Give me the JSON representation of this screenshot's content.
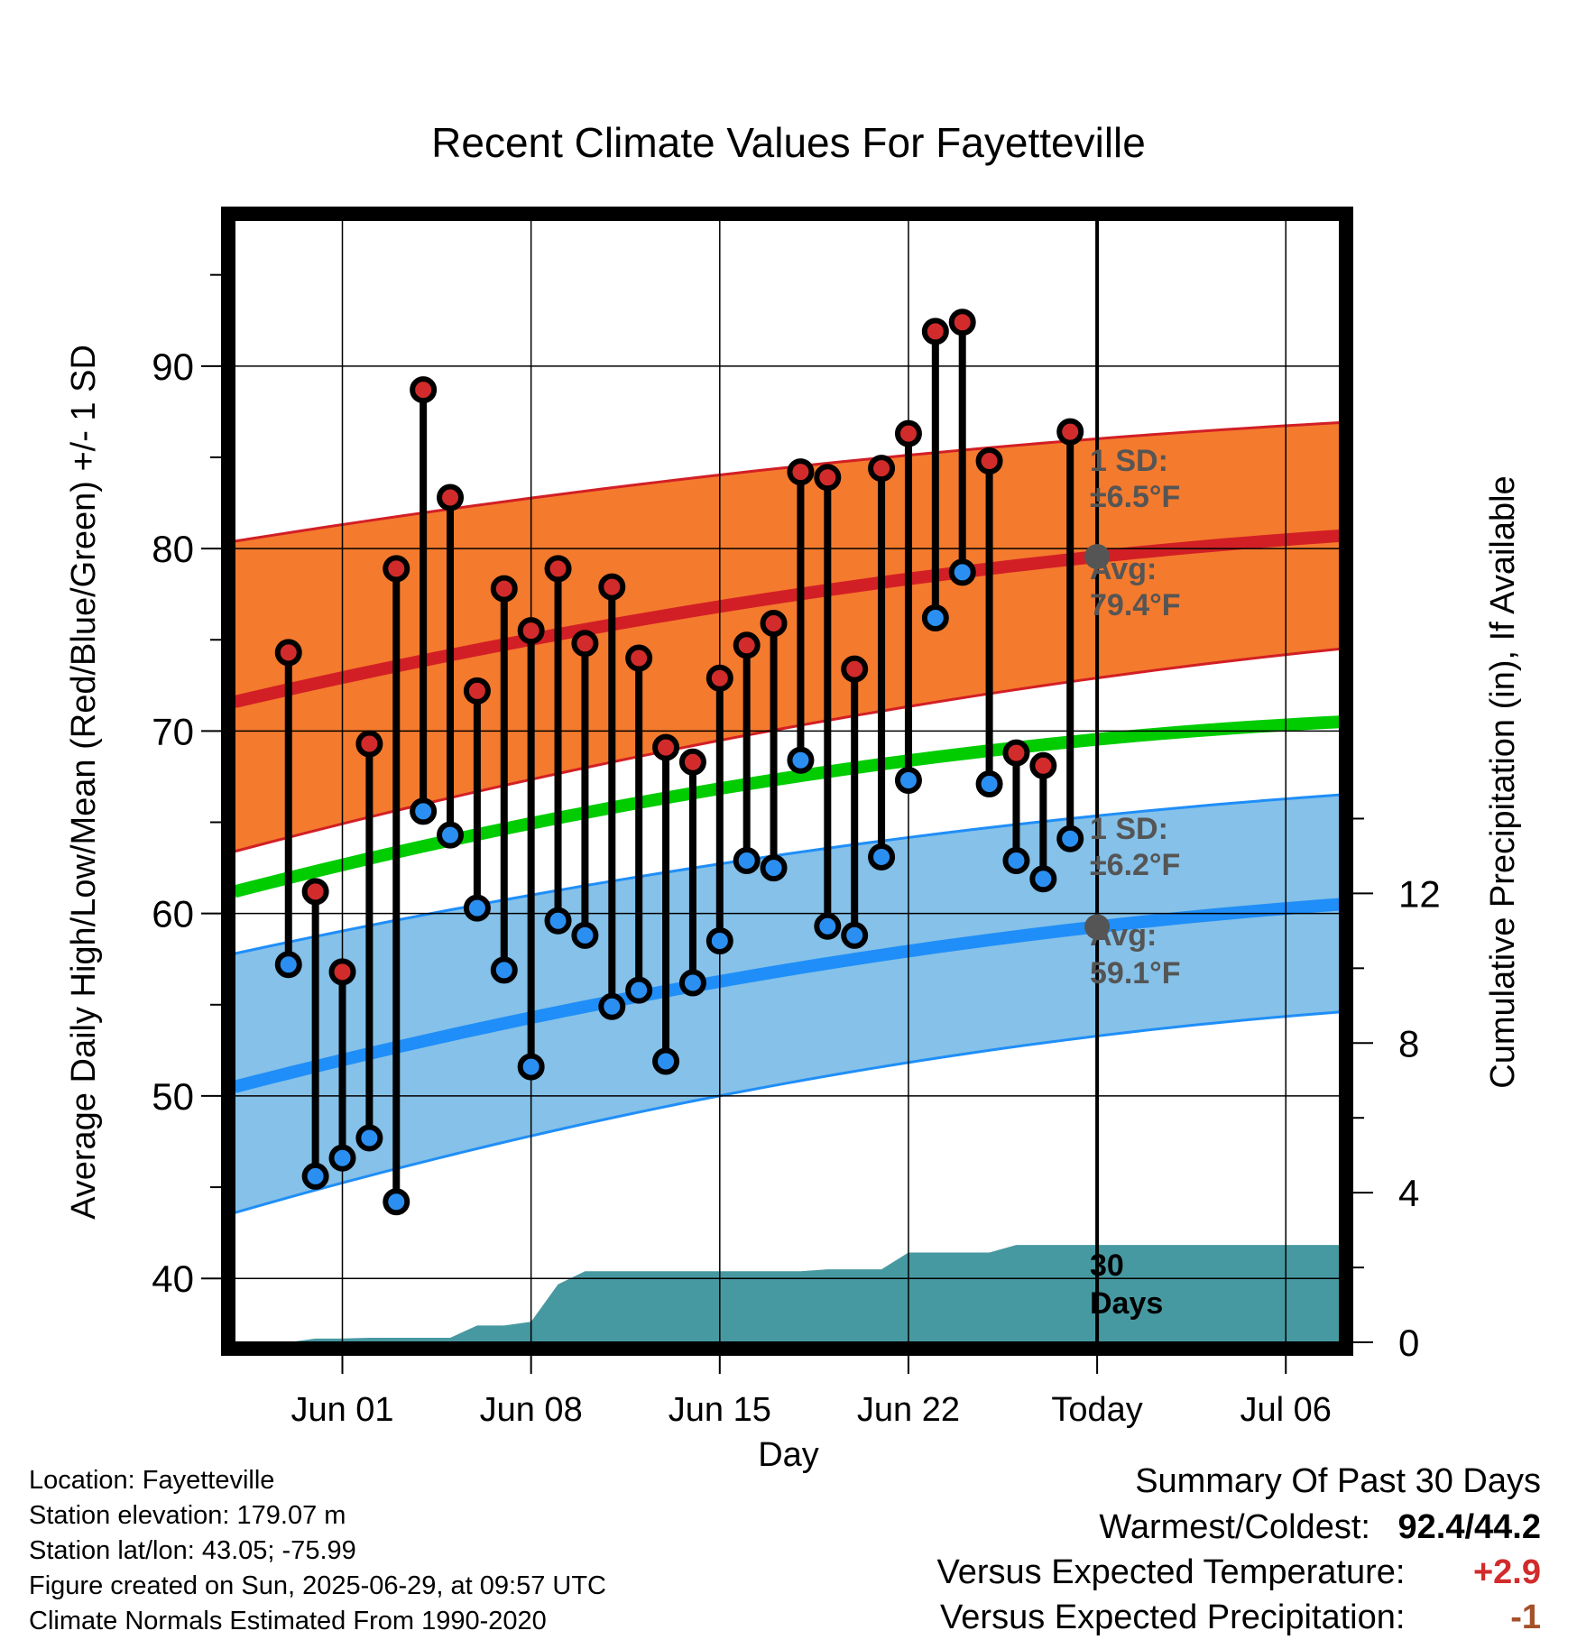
{
  "chart_data": {
    "type": "line",
    "title": "Recent Climate Values For Fayetteville",
    "xlabel": "Day",
    "ylabel": "Average Daily High/Low/Mean (Red/Blue/Green) +/- 1 SD",
    "y2label": "Cumulative Precipitation (in), If Available",
    "ylim": [
      36.5,
      98
    ],
    "y2lim": [
      0,
      30
    ],
    "yticks": [
      "40",
      "50",
      "60",
      "70",
      "80",
      "90"
    ],
    "y2ticks": [
      "0",
      "4",
      "8",
      "12"
    ],
    "x_domain": [
      "2025-05-28",
      "2025-07-08"
    ],
    "xticks": [
      {
        "date": "2025-06-01",
        "label": "Jun 01"
      },
      {
        "date": "2025-06-08",
        "label": "Jun 08"
      },
      {
        "date": "2025-06-15",
        "label": "Jun 15"
      },
      {
        "date": "2025-06-22",
        "label": "Jun 22"
      },
      {
        "date": "2025-06-29",
        "label": "Today"
      },
      {
        "date": "2025-07-06",
        "label": "Jul 06"
      }
    ],
    "today": "2025-06-29",
    "grid": true,
    "days": [
      "2025-05-30",
      "2025-05-31",
      "2025-06-01",
      "2025-06-02",
      "2025-06-03",
      "2025-06-04",
      "2025-06-05",
      "2025-06-06",
      "2025-06-07",
      "2025-06-08",
      "2025-06-09",
      "2025-06-10",
      "2025-06-11",
      "2025-06-12",
      "2025-06-13",
      "2025-06-14",
      "2025-06-15",
      "2025-06-16",
      "2025-06-17",
      "2025-06-18",
      "2025-06-19",
      "2025-06-20",
      "2025-06-21",
      "2025-06-22",
      "2025-06-23",
      "2025-06-24",
      "2025-06-25",
      "2025-06-26",
      "2025-06-27",
      "2025-06-28"
    ],
    "highs": [
      74.3,
      61.2,
      56.8,
      69.3,
      78.9,
      88.7,
      82.8,
      72.2,
      77.8,
      75.5,
      78.9,
      74.8,
      77.9,
      74.0,
      69.1,
      68.3,
      72.9,
      74.7,
      75.9,
      84.2,
      83.9,
      73.4,
      84.4,
      86.3,
      91.9,
      92.4,
      84.8,
      68.8,
      68.1,
      86.4
    ],
    "lows": [
      57.2,
      45.6,
      46.6,
      47.7,
      44.2,
      65.6,
      64.3,
      60.3,
      56.9,
      51.6,
      59.6,
      58.8,
      54.9,
      55.8,
      51.9,
      56.2,
      58.5,
      62.9,
      62.5,
      68.4,
      59.3,
      58.8,
      63.1,
      67.3,
      76.2,
      78.7,
      67.1,
      62.9,
      61.9,
      64.1
    ],
    "normals_dates": [
      "2025-05-28",
      "2025-06-28",
      "2025-07-08"
    ],
    "normal_high": [
      71.6,
      79.4,
      80.7
    ],
    "normal_high_upper": [
      80.4,
      85.9,
      86.9
    ],
    "normal_high_lower": [
      63.4,
      72.7,
      74.5
    ],
    "normal_mean": [
      61.2,
      69.4,
      70.5
    ],
    "normal_low": [
      50.5,
      59.1,
      60.5
    ],
    "normal_low_upper": [
      57.8,
      65.2,
      66.5
    ],
    "normal_low_lower": [
      43.6,
      53.1,
      54.6
    ],
    "precip": [
      [
        "2025-05-30",
        0.0
      ],
      [
        "2025-05-31",
        0.1
      ],
      [
        "2025-06-01",
        0.1
      ],
      [
        "2025-06-02",
        0.12
      ],
      [
        "2025-06-05",
        0.12
      ],
      [
        "2025-06-06",
        0.45
      ],
      [
        "2025-06-07",
        0.45
      ],
      [
        "2025-06-08",
        0.55
      ],
      [
        "2025-06-09",
        1.55
      ],
      [
        "2025-06-10",
        1.9
      ],
      [
        "2025-06-18",
        1.9
      ],
      [
        "2025-06-19",
        1.95
      ],
      [
        "2025-06-21",
        1.95
      ],
      [
        "2025-06-22",
        2.4
      ],
      [
        "2025-06-25",
        2.4
      ],
      [
        "2025-06-26",
        2.6
      ],
      [
        "2025-07-08",
        2.6
      ]
    ],
    "annotations": {
      "high_sd_label": "1 SD:",
      "high_sd_value": "±6.5°F",
      "high_avg_label": "Avg:",
      "high_avg_value": "79.4°F",
      "low_sd_label": "1 SD:",
      "low_sd_value": "±6.2°F",
      "low_avg_label": "Avg:",
      "low_avg_value": "59.1°F",
      "days_num": "30",
      "days_word": "Days"
    },
    "colors": {
      "high_band": "#f47a2d",
      "high_line": "#d21f25",
      "low_band": "#85c1e8",
      "low_line": "#1f8ef8",
      "mean_line": "#00cc00",
      "precip": "#4799a1",
      "marker_high": "#d22b2b",
      "marker_low": "#2b8ff2",
      "annotation": "#555555"
    }
  },
  "footer": {
    "location": "Location: Fayetteville",
    "elevation": "Station elevation: 179.07 m",
    "latlon": "Station lat/lon: 43.05; -75.99",
    "created": "Figure created on Sun, 2025-06-29, at 09:57 UTC",
    "normals": "Climate Normals Estimated From 1990-2020"
  },
  "summary": {
    "title": "Summary Of Past 30 Days",
    "warm_cold_label": "Warmest/Coldest:",
    "warm_cold_value": "92.4/44.2",
    "temp_label": "Versus Expected Temperature:",
    "temp_value": "+2.9",
    "precip_label": "Versus Expected Precipitation:",
    "precip_value": "-1",
    "temp_color": "#d22b2b",
    "precip_color": "#a5512a"
  }
}
